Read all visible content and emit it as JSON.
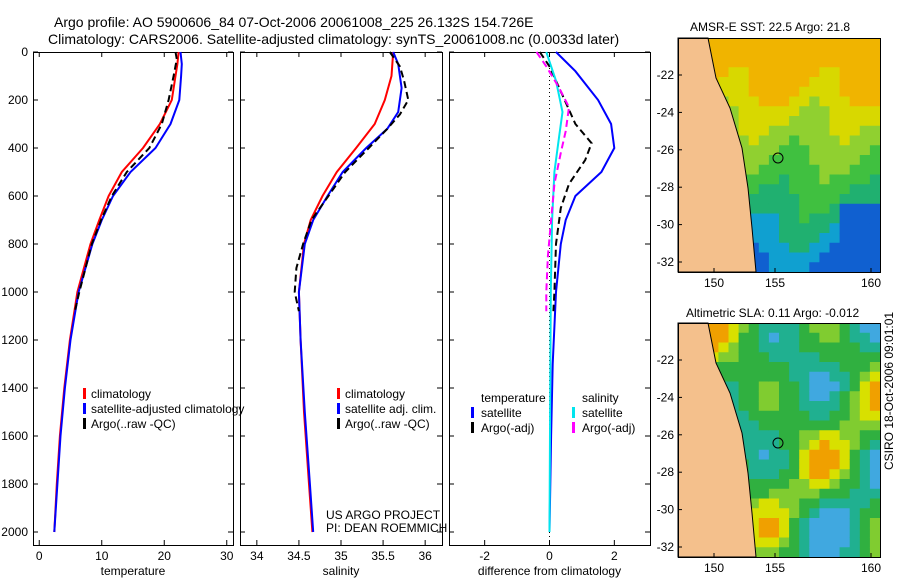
{
  "header": {
    "line1": "Argo profile: AO 5900606_84 07-Oct-2006 20061008_225 26.132S 154.726E",
    "line2": "Climatology: CARS2006. Satellite-adjusted climatology: synTS_20061008.nc (0.0033d later)"
  },
  "side_label": "CSIRO 18-Oct-2006 09:01:01",
  "credit": {
    "line1": "US ARGO PROJECT",
    "line2": "PI: DEAN ROEMMICH"
  },
  "colors": {
    "red": "#ff0000",
    "blue": "#0000ff",
    "black": "#000000",
    "cyan": "#00e5ee",
    "magenta": "#ff00ff",
    "land": "#f4c08c"
  },
  "chart_data": [
    {
      "type": "line",
      "xlabel": "temperature",
      "ylabel": "",
      "xlim": [
        -1,
        31
      ],
      "ylim": [
        2000,
        0
      ],
      "xticks": [
        "0",
        "10",
        "20",
        "30"
      ],
      "xtick_values": [
        0,
        10,
        20,
        30
      ],
      "yticks": [
        "0",
        "200",
        "400",
        "600",
        "800",
        "1000",
        "1200",
        "1400",
        "1600",
        "1800",
        "2000"
      ],
      "legend": [
        "climatology",
        "satellite-adjusted climatology",
        "Argo(..raw -QC)"
      ],
      "series": [
        {
          "name": "climatology",
          "color": "#ff0000",
          "dash": false,
          "points": [
            [
              22.3,
              0
            ],
            [
              22.1,
              50
            ],
            [
              21.8,
              100
            ],
            [
              21.2,
              200
            ],
            [
              19.3,
              300
            ],
            [
              16.6,
              400
            ],
            [
              13.2,
              500
            ],
            [
              11.1,
              600
            ],
            [
              9.6,
              700
            ],
            [
              8.2,
              800
            ],
            [
              6.1,
              1000
            ],
            [
              4.9,
              1200
            ],
            [
              4.0,
              1400
            ],
            [
              3.3,
              1600
            ],
            [
              2.8,
              1800
            ],
            [
              2.4,
              2000
            ]
          ]
        },
        {
          "name": "satellite-adjusted climatology",
          "color": "#0000ff",
          "dash": false,
          "points": [
            [
              22.6,
              0
            ],
            [
              22.8,
              50
            ],
            [
              22.7,
              100
            ],
            [
              22.4,
              200
            ],
            [
              21.0,
              300
            ],
            [
              18.6,
              400
            ],
            [
              14.6,
              500
            ],
            [
              11.8,
              600
            ],
            [
              10.0,
              700
            ],
            [
              8.5,
              800
            ],
            [
              6.3,
              1000
            ],
            [
              5.0,
              1200
            ],
            [
              4.1,
              1400
            ],
            [
              3.4,
              1600
            ],
            [
              2.9,
              1800
            ],
            [
              2.4,
              2000
            ]
          ]
        },
        {
          "name": "Argo(..raw -QC)",
          "color": "#000000",
          "dash": true,
          "points": [
            [
              21.8,
              0
            ],
            [
              22.0,
              30
            ],
            [
              21.5,
              100
            ],
            [
              20.7,
              200
            ],
            [
              19.6,
              300
            ],
            [
              17.6,
              400
            ],
            [
              14.0,
              500
            ],
            [
              11.6,
              600
            ],
            [
              9.9,
              700
            ],
            [
              8.4,
              800
            ],
            [
              6.4,
              1000
            ],
            [
              5.7,
              1080
            ]
          ]
        }
      ]
    },
    {
      "type": "line",
      "xlabel": "salinity",
      "xlim": [
        33.8,
        36.2
      ],
      "ylim": [
        2000,
        0
      ],
      "xticks": [
        "34",
        "34.5",
        "35",
        "35.5",
        "36"
      ],
      "xtick_values": [
        34,
        34.5,
        35,
        35.5,
        36
      ],
      "legend": [
        "climatology",
        "satellite adj. clim.",
        "Argo(..raw -QC)"
      ],
      "series": [
        {
          "name": "climatology",
          "color": "#ff0000",
          "dash": false,
          "points": [
            [
              35.62,
              0
            ],
            [
              35.6,
              100
            ],
            [
              35.52,
              200
            ],
            [
              35.4,
              300
            ],
            [
              35.18,
              400
            ],
            [
              34.95,
              500
            ],
            [
              34.78,
              600
            ],
            [
              34.64,
              700
            ],
            [
              34.56,
              800
            ],
            [
              34.5,
              1000
            ],
            [
              34.52,
              1200
            ],
            [
              34.56,
              1500
            ],
            [
              34.62,
              1800
            ],
            [
              34.66,
              2000
            ]
          ]
        },
        {
          "name": "satellite adj. clim.",
          "color": "#0000ff",
          "dash": false,
          "points": [
            [
              35.62,
              0
            ],
            [
              35.68,
              50
            ],
            [
              35.72,
              150
            ],
            [
              35.68,
              250
            ],
            [
              35.55,
              320
            ],
            [
              35.3,
              400
            ],
            [
              35.02,
              500
            ],
            [
              34.84,
              600
            ],
            [
              34.67,
              700
            ],
            [
              34.57,
              800
            ],
            [
              34.5,
              1000
            ],
            [
              34.52,
              1200
            ],
            [
              34.57,
              1500
            ],
            [
              34.63,
              1800
            ],
            [
              34.67,
              2000
            ]
          ]
        },
        {
          "name": "Argo(..raw -QC)",
          "color": "#000000",
          "dash": true,
          "points": [
            [
              35.58,
              0
            ],
            [
              35.7,
              60
            ],
            [
              35.75,
              120
            ],
            [
              35.8,
              200
            ],
            [
              35.7,
              260
            ],
            [
              35.55,
              320
            ],
            [
              35.33,
              400
            ],
            [
              35.05,
              500
            ],
            [
              34.85,
              600
            ],
            [
              34.65,
              700
            ],
            [
              34.55,
              800
            ],
            [
              34.47,
              900
            ],
            [
              34.45,
              1000
            ],
            [
              34.5,
              1080
            ]
          ]
        }
      ]
    },
    {
      "type": "line",
      "xlabel": "difference from climatology",
      "xlim": [
        -3.1,
        3.1
      ],
      "ylim": [
        2000,
        0
      ],
      "xticks": [
        "-2",
        "0",
        "2"
      ],
      "xtick_values": [
        -2,
        0,
        2
      ],
      "legend_groups": {
        "temperature": "temperature",
        "salinity": "salinity"
      },
      "legend": [
        "satellite",
        "Argo(-adj)",
        "satellite",
        "Argo(-adj)"
      ],
      "series": [
        {
          "name": "temperature satellite",
          "color": "#0000ff",
          "dash": false,
          "points": [
            [
              0.2,
              0
            ],
            [
              0.8,
              80
            ],
            [
              1.5,
              200
            ],
            [
              1.9,
              300
            ],
            [
              2.0,
              400
            ],
            [
              1.6,
              500
            ],
            [
              0.8,
              600
            ],
            [
              0.5,
              700
            ],
            [
              0.35,
              800
            ],
            [
              0.2,
              1000
            ],
            [
              0.1,
              1300
            ],
            [
              0.05,
              1600
            ],
            [
              0.0,
              2000
            ]
          ]
        },
        {
          "name": "temperature Argo(-adj)",
          "color": "#000000",
          "dash": true,
          "points": [
            [
              -0.3,
              0
            ],
            [
              0.0,
              60
            ],
            [
              0.4,
              180
            ],
            [
              0.8,
              300
            ],
            [
              1.3,
              380
            ],
            [
              1.1,
              450
            ],
            [
              0.6,
              550
            ],
            [
              0.35,
              650
            ],
            [
              0.2,
              800
            ],
            [
              0.15,
              1000
            ],
            [
              0.12,
              1080
            ]
          ]
        },
        {
          "name": "salinity satellite",
          "color": "#00e5ee",
          "dash": false,
          "points": [
            [
              -0.1,
              0
            ],
            [
              0.0,
              40
            ],
            [
              0.2,
              120
            ],
            [
              0.4,
              250
            ],
            [
              0.3,
              350
            ],
            [
              0.15,
              500
            ],
            [
              0.08,
              700
            ],
            [
              0.04,
              1000
            ],
            [
              0.02,
              1500
            ],
            [
              0.0,
              2000
            ]
          ]
        },
        {
          "name": "salinity Argo(-adj)",
          "color": "#ff00ff",
          "dash": true,
          "points": [
            [
              -0.4,
              0
            ],
            [
              -0.1,
              60
            ],
            [
              0.3,
              150
            ],
            [
              0.6,
              230
            ],
            [
              0.5,
              330
            ],
            [
              0.35,
              420
            ],
            [
              0.15,
              550
            ],
            [
              0.05,
              700
            ],
            [
              -0.05,
              850
            ],
            [
              -0.1,
              1000
            ],
            [
              -0.1,
              1080
            ]
          ]
        }
      ]
    }
  ],
  "maps": [
    {
      "title": "AMSR-E SST: 22.5 Argo: 21.8",
      "lat_ticks": [
        "-22",
        "-24",
        "-26",
        "-28",
        "-30",
        "-32"
      ],
      "lon_ticks": [
        "150",
        "155",
        "160"
      ]
    },
    {
      "title": "Altimetric SLA: 0.11 Argo: -0.012",
      "lat_ticks": [
        "-22",
        "-24",
        "-26",
        "-28",
        "-30",
        "-32"
      ],
      "lon_ticks": [
        "150",
        "155",
        "160"
      ]
    }
  ],
  "depth_ticks": [
    "0",
    "200",
    "400",
    "600",
    "800",
    "1000",
    "1200",
    "1400",
    "1600",
    "1800",
    "2000"
  ]
}
